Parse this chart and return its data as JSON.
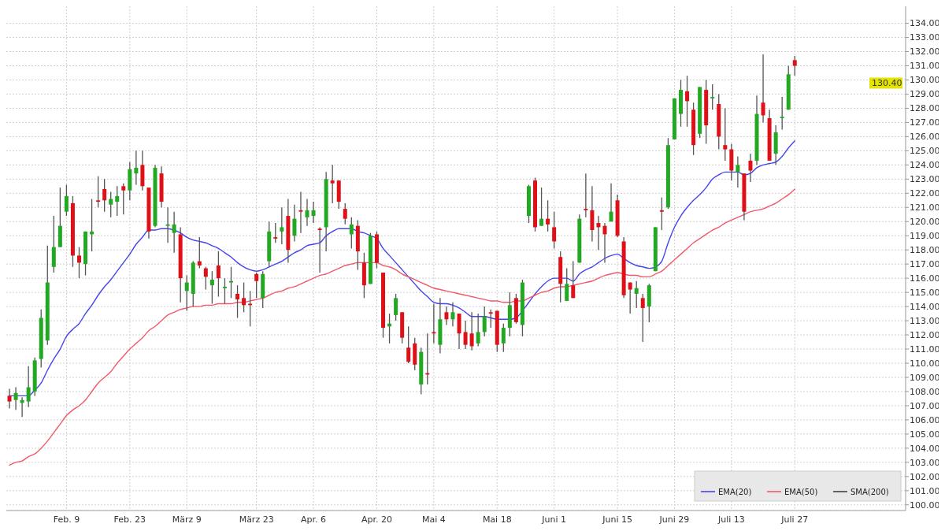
{
  "chart_data": {
    "type": "candlestick",
    "categories": [
      null,
      null,
      null,
      null,
      null,
      null,
      null,
      null,
      null,
      "Feb. 9",
      null,
      null,
      null,
      null,
      null,
      null,
      null,
      null,
      null,
      "Feb. 23",
      null,
      null,
      null,
      null,
      null,
      null,
      null,
      null,
      "März 9",
      null,
      null,
      null,
      null,
      null,
      null,
      null,
      null,
      null,
      null,
      "März 23",
      null,
      null,
      null,
      null,
      null,
      null,
      null,
      null,
      "Apr. 6",
      null,
      null,
      null,
      null,
      null,
      null,
      null,
      null,
      null,
      "Apr. 20",
      null,
      null,
      null,
      null,
      null,
      null,
      null,
      null,
      "Mai 4",
      null,
      null,
      null,
      null,
      null,
      null,
      null,
      null,
      null,
      "Mai 18",
      null,
      null,
      null,
      null,
      null,
      null,
      null,
      null,
      "Juni 1",
      null,
      null,
      null,
      null,
      null,
      null,
      null,
      null,
      null,
      "Juni 15",
      null,
      null,
      null,
      null,
      null,
      null,
      null,
      null,
      "Juni 29",
      null,
      null,
      null,
      null,
      null,
      null,
      null,
      null,
      "Juli 13",
      null,
      null,
      null,
      null,
      null,
      null,
      null,
      null,
      null,
      "Juli 27",
      null,
      null,
      null,
      null,
      null,
      null,
      null,
      null,
      null,
      null,
      null,
      null,
      null,
      null,
      null,
      null,
      null
    ],
    "ohlc": [
      [
        107.7,
        108.2,
        106.8,
        107.3
      ],
      [
        107.4,
        108.3,
        106.7,
        107.9
      ],
      [
        107.2,
        107.6,
        106.2,
        107.4
      ],
      [
        107.3,
        109.8,
        106.9,
        108.3
      ],
      [
        108.0,
        110.4,
        107.7,
        110.2
      ],
      [
        110.3,
        113.8,
        109.7,
        113.2
      ],
      [
        111.6,
        118.3,
        111.3,
        115.7
      ],
      [
        116.8,
        120.4,
        116.4,
        118.2
      ],
      [
        118.2,
        122.4,
        118.2,
        119.7
      ],
      [
        120.7,
        122.6,
        120.4,
        121.8
      ],
      [
        121.3,
        121.8,
        116.8,
        117.6
      ],
      [
        117.6,
        118.2,
        116.0,
        117.1
      ],
      [
        117.0,
        119.3,
        116.2,
        119.3
      ],
      [
        119.1,
        121.6,
        117.9,
        119.3
      ],
      [
        121.5,
        123.2,
        121.0,
        121.4
      ],
      [
        122.3,
        123.0,
        120.7,
        121.5
      ],
      [
        121.2,
        122.1,
        120.3,
        121.6
      ],
      [
        121.4,
        122.5,
        120.4,
        121.8
      ],
      [
        122.5,
        122.7,
        120.5,
        122.2
      ],
      [
        122.2,
        124.2,
        121.5,
        123.7
      ],
      [
        123.4,
        125.0,
        122.6,
        123.8
      ],
      [
        124.0,
        125.0,
        122.2,
        122.5
      ],
      [
        122.4,
        122.4,
        118.8,
        119.3
      ],
      [
        119.7,
        124.0,
        119.6,
        123.8
      ],
      [
        123.4,
        123.9,
        121.0,
        121.4
      ],
      [
        119.7,
        121.0,
        118.5,
        119.8
      ],
      [
        119.2,
        120.7,
        117.8,
        119.8
      ],
      [
        119.1,
        119.6,
        114.3,
        116.0
      ],
      [
        115.1,
        116.2,
        113.7,
        115.7
      ],
      [
        114.9,
        117.2,
        114.0,
        117.1
      ],
      [
        117.2,
        118.9,
        116.7,
        116.9
      ],
      [
        116.7,
        116.8,
        115.2,
        116.1
      ],
      [
        115.5,
        116.5,
        114.2,
        115.9
      ],
      [
        116.9,
        117.9,
        114.7,
        116.0
      ],
      [
        115.3,
        116.0,
        114.2,
        115.4
      ],
      [
        115.7,
        116.8,
        114.6,
        115.8
      ],
      [
        114.9,
        115.5,
        113.2,
        114.5
      ],
      [
        114.6,
        115.7,
        113.6,
        114.1
      ],
      [
        114.2,
        115.1,
        112.6,
        114.1
      ],
      [
        116.3,
        116.4,
        114.6,
        115.8
      ],
      [
        114.6,
        116.5,
        113.9,
        116.3
      ],
      [
        117.2,
        120.0,
        116.8,
        119.3
      ],
      [
        118.9,
        119.9,
        118.5,
        118.8
      ],
      [
        119.3,
        121.0,
        118.4,
        119.6
      ],
      [
        120.4,
        121.6,
        117.1,
        118.0
      ],
      [
        119.0,
        121.2,
        118.6,
        120.2
      ],
      [
        120.8,
        122.1,
        119.2,
        120.7
      ],
      [
        120.3,
        121.6,
        119.7,
        120.8
      ],
      [
        120.4,
        121.4,
        119.9,
        120.8
      ],
      [
        119.5,
        119.6,
        116.4,
        119.4
      ],
      [
        119.6,
        123.5,
        117.9,
        123.0
      ],
      [
        122.9,
        124.0,
        121.3,
        122.7
      ],
      [
        122.9,
        122.9,
        120.9,
        121.4
      ],
      [
        120.9,
        121.3,
        119.8,
        120.2
      ],
      [
        119.1,
        120.3,
        118.1,
        119.8
      ],
      [
        119.7,
        120.1,
        116.6,
        117.9
      ],
      [
        117.1,
        117.8,
        114.6,
        115.5
      ],
      [
        115.6,
        119.2,
        115.6,
        119.0
      ],
      [
        119.1,
        119.3,
        116.7,
        117.1
      ],
      [
        116.4,
        116.4,
        111.8,
        112.5
      ],
      [
        112.6,
        113.5,
        111.4,
        112.8
      ],
      [
        113.4,
        114.9,
        113.0,
        114.6
      ],
      [
        113.6,
        113.6,
        111.4,
        111.8
      ],
      [
        111.1,
        112.6,
        110.0,
        110.1
      ],
      [
        111.4,
        111.8,
        109.5,
        109.9
      ],
      [
        108.5,
        111.1,
        107.8,
        110.8
      ],
      [
        109.3,
        112.1,
        108.5,
        109.2
      ],
      [
        112.2,
        114.2,
        111.4,
        112.1
      ],
      [
        111.3,
        114.6,
        110.7,
        113.1
      ],
      [
        113.6,
        114.0,
        112.7,
        113.1
      ],
      [
        113.1,
        114.3,
        112.6,
        113.6
      ],
      [
        113.5,
        113.5,
        111.0,
        112.1
      ],
      [
        112.2,
        113.0,
        111.0,
        111.3
      ],
      [
        112.1,
        113.6,
        110.9,
        111.2
      ],
      [
        111.4,
        113.5,
        111.2,
        112.2
      ],
      [
        112.2,
        114.0,
        111.9,
        113.3
      ],
      [
        113.6,
        113.8,
        112.5,
        113.5
      ],
      [
        113.7,
        113.7,
        110.8,
        111.3
      ],
      [
        111.4,
        112.8,
        110.8,
        112.5
      ],
      [
        112.5,
        115.0,
        111.9,
        114.1
      ],
      [
        114.6,
        114.9,
        112.8,
        112.9
      ],
      [
        112.7,
        115.9,
        111.9,
        115.7
      ],
      [
        120.4,
        122.6,
        119.9,
        122.5
      ],
      [
        122.9,
        123.1,
        119.3,
        119.6
      ],
      [
        119.7,
        122.4,
        119.7,
        120.2
      ],
      [
        120.2,
        121.5,
        119.3,
        119.8
      ],
      [
        119.6,
        120.7,
        118.1,
        118.6
      ],
      [
        117.5,
        117.9,
        114.3,
        115.6
      ],
      [
        114.4,
        116.7,
        114.4,
        115.6
      ],
      [
        115.5,
        117.2,
        114.6,
        114.6
      ],
      [
        117.1,
        120.5,
        117.1,
        120.2
      ],
      [
        120.9,
        123.4,
        120.3,
        120.8
      ],
      [
        120.8,
        122.5,
        118.6,
        119.4
      ],
      [
        119.9,
        120.4,
        118.0,
        119.6
      ],
      [
        119.7,
        119.9,
        117.1,
        119.1
      ],
      [
        120.0,
        122.7,
        120.0,
        120.7
      ],
      [
        121.5,
        121.9,
        118.9,
        119.0
      ],
      [
        118.6,
        118.9,
        114.6,
        114.8
      ],
      [
        115.7,
        115.7,
        113.5,
        115.2
      ],
      [
        114.9,
        115.8,
        113.9,
        115.3
      ],
      [
        114.6,
        114.9,
        111.5,
        113.9
      ],
      [
        114.0,
        115.6,
        112.9,
        115.5
      ],
      [
        116.5,
        119.6,
        116.5,
        119.6
      ],
      [
        120.8,
        121.7,
        119.4,
        120.7
      ],
      [
        121.0,
        125.9,
        120.9,
        125.4
      ],
      [
        125.8,
        128.7,
        125.8,
        128.7
      ],
      [
        127.6,
        130.0,
        126.7,
        129.3
      ],
      [
        129.2,
        130.3,
        126.7,
        128.5
      ],
      [
        127.9,
        128.4,
        124.7,
        125.4
      ],
      [
        126.2,
        129.5,
        125.9,
        129.5
      ],
      [
        129.3,
        130.0,
        125.5,
        126.8
      ],
      [
        128.7,
        129.7,
        127.9,
        128.8
      ],
      [
        128.3,
        129.0,
        125.1,
        126.0
      ],
      [
        125.4,
        128.0,
        124.3,
        125.1
      ],
      [
        125.1,
        125.5,
        122.9,
        123.6
      ],
      [
        123.5,
        124.6,
        122.4,
        124.0
      ],
      [
        123.4,
        123.4,
        120.1,
        120.7
      ],
      [
        124.3,
        124.8,
        122.8,
        123.6
      ],
      [
        124.3,
        128.9,
        124.0,
        127.6
      ],
      [
        128.4,
        131.8,
        127.0,
        127.5
      ],
      [
        127.3,
        127.9,
        124.3,
        124.3
      ],
      [
        124.8,
        126.8,
        124.0,
        126.3
      ],
      [
        127.3,
        128.8,
        126.5,
        127.4
      ],
      [
        127.9,
        131.0,
        127.9,
        130.4
      ],
      [
        131.4,
        131.7,
        130.3,
        131.0
      ],
      null,
      null,
      null,
      null,
      null,
      null,
      null,
      null,
      null,
      null,
      null,
      null,
      null,
      null,
      null,
      null,
      null
    ],
    "colors": [
      "#e01018",
      "#22a822",
      "#22a822",
      "#22a822",
      "#22a822",
      "#22a822",
      "#22a822",
      "#22a822",
      "#22a822",
      "#22a822",
      "#e01018",
      "#e01018",
      "#22a822",
      "#22a822",
      "#e01018",
      "#e01018",
      "#22a822",
      "#22a822",
      "#e01018",
      "#22a822",
      "#22a822",
      "#e01018",
      "#e01018",
      "#22a822",
      "#e01018",
      "#22a822",
      "#22a822",
      "#e01018",
      "#22a822",
      "#22a822",
      "#e01018",
      "#e01018",
      "#22a822",
      "#e01018",
      "#22a822",
      "#22a822",
      "#e01018",
      "#e01018",
      "#e01018",
      "#e01018",
      "#22a822",
      "#22a822",
      "#e01018",
      "#22a822",
      "#e01018",
      "#22a822",
      "#e01018",
      "#22a822",
      "#22a822",
      "#e01018",
      "#22a822",
      "#e01018",
      "#e01018",
      "#e01018",
      "#22a822",
      "#e01018",
      "#e01018",
      "#22a822",
      "#e01018",
      "#e01018",
      "#22a822",
      "#22a822",
      "#e01018",
      "#e01018",
      "#e01018",
      "#22a822",
      "#e01018",
      "#e01018",
      "#22a822",
      "#e01018",
      "#22a822",
      "#e01018",
      "#e01018",
      "#e01018",
      "#22a822",
      "#22a822",
      "#e01018",
      "#e01018",
      "#22a822",
      "#22a822",
      "#e01018",
      "#22a822",
      "#22a822",
      "#e01018",
      "#22a822",
      "#e01018",
      "#e01018",
      "#e01018",
      "#22a822",
      "#e01018",
      "#22a822",
      "#e01018",
      "#e01018",
      "#e01018",
      "#e01018",
      "#22a822",
      "#e01018",
      "#e01018",
      "#e01018",
      "#22a822",
      "#e01018",
      "#22a822",
      "#22a822",
      "#e01018",
      "#22a822",
      "#22a822",
      "#22a822",
      "#e01018",
      "#e01018",
      "#22a822",
      "#e01018",
      "#22a822",
      "#e01018",
      "#e01018",
      "#e01018",
      "#22a822",
      "#e01018",
      "#e01018",
      "#22a822",
      "#e01018",
      "#e01018",
      "#22a822",
      "#22a822",
      "#22a822",
      "#e01018",
      null,
      null,
      null,
      null,
      null,
      null,
      null,
      null,
      null,
      null,
      null,
      null,
      null,
      null,
      null,
      null,
      null
    ],
    "series": [
      {
        "name": "EMA(20)",
        "type": "line",
        "color": "#4444ee",
        "values": [
          107.7,
          107.7,
          107.7,
          107.7,
          108.1,
          108.6,
          109.5,
          110.3,
          111.0,
          111.9,
          112.4,
          112.8,
          113.5,
          114.1,
          114.8,
          115.4,
          115.9,
          116.5,
          117.1,
          117.7,
          118.4,
          118.9,
          119.4,
          119.4,
          119.5,
          119.5,
          119.4,
          119.2,
          118.9,
          118.7,
          118.6,
          118.5,
          118.3,
          118.1,
          117.8,
          117.5,
          117.1,
          116.8,
          116.6,
          116.5,
          116.6,
          116.8,
          117.0,
          117.2,
          117.5,
          117.8,
          118.0,
          118.3,
          118.4,
          118.5,
          119.0,
          119.3,
          119.5,
          119.5,
          119.5,
          119.3,
          119.2,
          119.0,
          118.8,
          118.1,
          117.6,
          117.1,
          116.6,
          116.1,
          115.6,
          115.1,
          114.7,
          114.3,
          114.2,
          114.2,
          114.1,
          113.9,
          113.6,
          113.3,
          113.3,
          113.3,
          113.2,
          113.1,
          113.1,
          113.1,
          113.2,
          113.7,
          114.3,
          114.9,
          115.4,
          115.8,
          116.0,
          116.0,
          116.0,
          115.8,
          116.3,
          116.6,
          116.8,
          117.1,
          117.4,
          117.6,
          117.7,
          117.4,
          117.1,
          116.9,
          116.8,
          116.7,
          116.8,
          117.2,
          118.5,
          119.6,
          120.4,
          121.0,
          121.5,
          121.9,
          122.4,
          123.0,
          123.3,
          123.5,
          123.5,
          123.5,
          123.3,
          123.4,
          123.8,
          124.0,
          124.1,
          124.2,
          124.6,
          125.2,
          125.7,
          null,
          null,
          null,
          null,
          null,
          null,
          null,
          null,
          null,
          null,
          null,
          null,
          null,
          null,
          null,
          null,
          null
        ]
      },
      {
        "name": "EMA(50)",
        "type": "line",
        "color": "#f05a6a",
        "values": [
          102.8,
          103.0,
          103.1,
          103.4,
          103.6,
          104.0,
          104.5,
          105.1,
          105.7,
          106.3,
          106.7,
          107.0,
          107.4,
          108.0,
          108.6,
          109.0,
          109.4,
          110.0,
          110.5,
          111.0,
          111.4,
          111.8,
          112.3,
          112.6,
          113.0,
          113.4,
          113.6,
          113.8,
          113.9,
          114.0,
          114.0,
          114.1,
          114.1,
          114.2,
          114.2,
          114.2,
          114.3,
          114.3,
          114.4,
          114.5,
          114.6,
          114.8,
          115.0,
          115.1,
          115.3,
          115.4,
          115.6,
          115.8,
          116.0,
          116.2,
          116.3,
          116.5,
          116.7,
          116.9,
          117.0,
          117.1,
          117.1,
          117.1,
          117.1,
          116.9,
          116.8,
          116.6,
          116.3,
          116.1,
          115.9,
          115.7,
          115.5,
          115.3,
          115.2,
          115.1,
          115.0,
          114.9,
          114.8,
          114.7,
          114.6,
          114.5,
          114.4,
          114.4,
          114.3,
          114.3,
          114.4,
          114.4,
          114.6,
          114.8,
          115.0,
          115.1,
          115.3,
          115.4,
          115.4,
          115.5,
          115.6,
          115.7,
          115.8,
          116.0,
          116.2,
          116.3,
          116.4,
          116.3,
          116.2,
          116.2,
          116.1,
          116.1,
          116.3,
          116.5,
          116.9,
          117.3,
          117.7,
          118.1,
          118.5,
          118.8,
          119.1,
          119.4,
          119.6,
          119.9,
          120.1,
          120.3,
          120.5,
          120.7,
          120.8,
          120.9,
          121.1,
          121.3,
          121.6,
          121.9,
          122.3,
          null,
          null,
          null,
          null,
          null,
          null,
          null,
          null,
          null,
          null,
          null,
          null,
          null,
          null,
          null,
          null,
          null
        ]
      },
      {
        "name": "SMA(200)",
        "type": "line",
        "color": "#404040",
        "values": [
          null,
          null,
          null,
          null,
          null,
          null,
          null,
          null,
          null,
          null,
          null,
          null,
          null,
          null,
          null,
          null,
          null,
          null,
          null,
          null,
          null,
          null,
          null,
          null,
          null,
          null,
          null,
          null,
          null,
          null,
          null,
          null,
          null,
          null,
          null,
          null,
          null,
          null,
          null,
          null,
          null,
          null,
          null,
          null,
          null,
          null,
          null,
          null,
          null,
          null,
          null,
          null,
          null,
          null,
          null,
          null,
          null,
          null,
          null,
          null,
          null,
          null,
          null,
          null,
          null,
          null,
          null,
          null,
          null,
          null,
          null,
          null,
          null,
          null,
          null,
          null,
          null,
          null,
          null,
          null,
          null,
          null,
          null,
          null,
          null,
          null,
          null,
          null,
          null,
          null,
          null,
          null,
          null,
          null,
          null,
          null,
          null,
          null,
          null,
          null,
          null,
          null,
          null,
          null,
          null,
          null,
          null,
          null,
          null,
          null,
          null,
          null,
          null,
          null,
          null,
          null,
          null,
          null,
          null,
          null,
          null,
          null,
          null,
          null,
          null,
          null,
          null,
          null,
          null,
          null,
          null,
          null,
          null,
          null,
          null,
          null,
          null,
          null,
          null,
          null,
          null,
          null
        ]
      }
    ],
    "ylim": [
      99.6,
      135.2
    ],
    "yticks": [
      {
        "value": 100,
        "label": "100.00"
      },
      {
        "value": 101,
        "label": "101.00"
      },
      {
        "value": 102,
        "label": "102.00"
      },
      {
        "value": 103,
        "label": "103.00"
      },
      {
        "value": 104,
        "label": "104.00"
      },
      {
        "value": 105,
        "label": "105.00"
      },
      {
        "value": 106,
        "label": "106.00"
      },
      {
        "value": 107,
        "label": "107.00"
      },
      {
        "value": 108,
        "label": "108.00"
      },
      {
        "value": 109,
        "label": "109.00"
      },
      {
        "value": 110,
        "label": "110.00"
      },
      {
        "value": 111,
        "label": "111.00"
      },
      {
        "value": 112,
        "label": "112.00"
      },
      {
        "value": 113,
        "label": "113.00"
      },
      {
        "value": 114,
        "label": "114.00"
      },
      {
        "value": 115,
        "label": "115.00"
      },
      {
        "value": 116,
        "label": "116.00"
      },
      {
        "value": 117,
        "label": "117.00"
      },
      {
        "value": 118,
        "label": "118.00"
      },
      {
        "value": 119,
        "label": "119.00"
      },
      {
        "value": 120,
        "label": "120.00"
      },
      {
        "value": 121,
        "label": "121.00"
      },
      {
        "value": 122,
        "label": "122.00"
      },
      {
        "value": 123,
        "label": "123.00"
      },
      {
        "value": 124,
        "label": "124.00"
      },
      {
        "value": 125,
        "label": "125.00"
      },
      {
        "value": 126,
        "label": "126.00"
      },
      {
        "value": 127,
        "label": "127.00"
      },
      {
        "value": 128,
        "label": "128.00"
      },
      {
        "value": 129,
        "label": "129.00"
      },
      {
        "value": 130,
        "label": "130.00"
      },
      {
        "value": 131,
        "label": "131.00"
      },
      {
        "value": 132,
        "label": "132.00"
      },
      {
        "value": 133,
        "label": "133.00"
      },
      {
        "value": 134,
        "label": "134.00"
      }
    ],
    "annotations": [
      "130.40"
    ],
    "grid": true,
    "legend": "bottom right"
  }
}
